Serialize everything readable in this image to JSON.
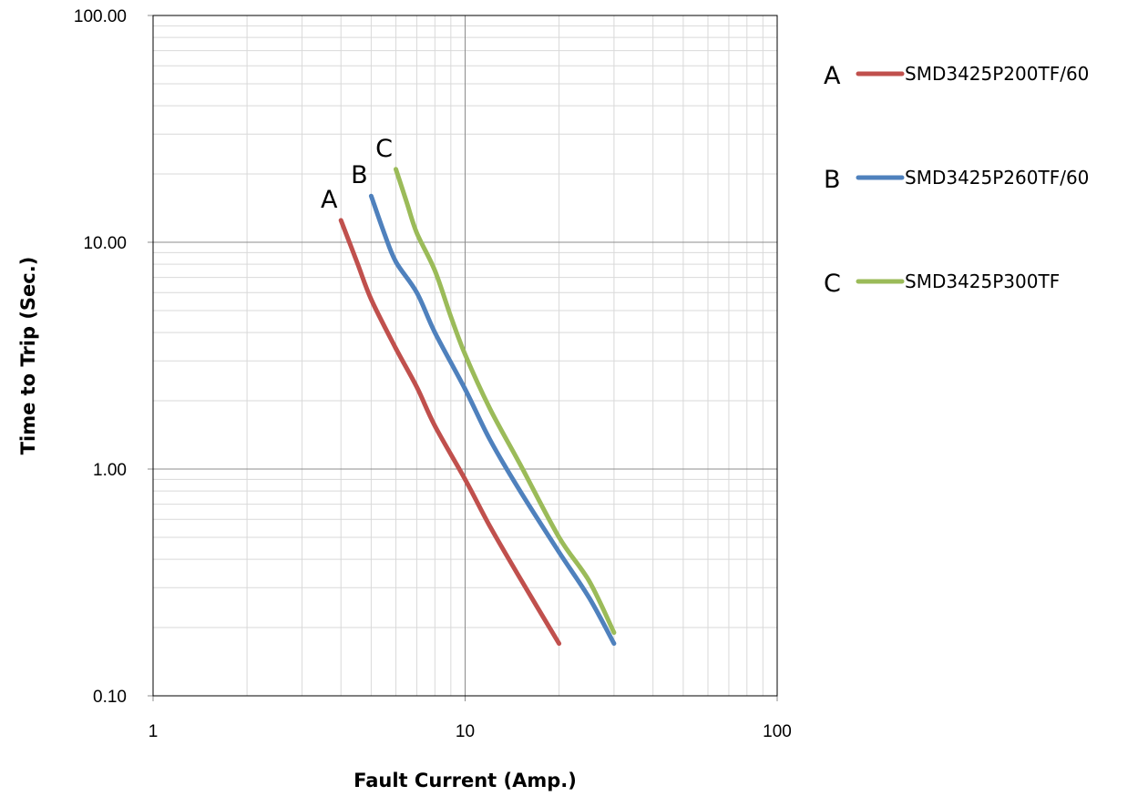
{
  "chart_data": {
    "type": "line",
    "x_scale": "log",
    "y_scale": "log",
    "xlabel": "Fault Current (Amp.)",
    "ylabel": "Time to Trip (Sec.)",
    "xlim": [
      1,
      100
    ],
    "ylim": [
      0.1,
      100
    ],
    "x_tick_labels": [
      "1",
      "10",
      "100"
    ],
    "x_ticks": [
      1,
      10,
      100
    ],
    "y_tick_labels": [
      "0.10",
      "1.00",
      "10.00",
      "100.00"
    ],
    "y_ticks": [
      0.1,
      1,
      10,
      100
    ],
    "grid": true,
    "legend_position": "right",
    "series": [
      {
        "name": "SMD3425P200TF/60",
        "letter": "A",
        "color": "#c0504d",
        "x": [
          4.0,
          4.5,
          5.0,
          6.0,
          7.0,
          8.0,
          10.0,
          12.0,
          15.0,
          20.0
        ],
        "y": [
          12.5,
          8.2,
          5.6,
          3.4,
          2.3,
          1.55,
          0.9,
          0.56,
          0.33,
          0.17
        ]
      },
      {
        "name": "SMD3425P260TF/60",
        "letter": "B",
        "color": "#4f81bd",
        "x": [
          5.0,
          5.5,
          6.0,
          7.0,
          8.0,
          10.0,
          12.0,
          15.0,
          20.0,
          25.0,
          30.0
        ],
        "y": [
          16.0,
          11.0,
          8.2,
          6.0,
          4.0,
          2.25,
          1.35,
          0.8,
          0.43,
          0.27,
          0.17
        ]
      },
      {
        "name": "SMD3425P300TF",
        "letter": "C",
        "color": "#9bbb59",
        "x": [
          6.0,
          6.5,
          7.0,
          8.0,
          9.0,
          10.0,
          12.0,
          15.0,
          20.0,
          25.0,
          30.0
        ],
        "y": [
          21.0,
          15.0,
          11.0,
          7.5,
          4.7,
          3.2,
          1.85,
          1.05,
          0.5,
          0.32,
          0.19
        ]
      }
    ]
  }
}
